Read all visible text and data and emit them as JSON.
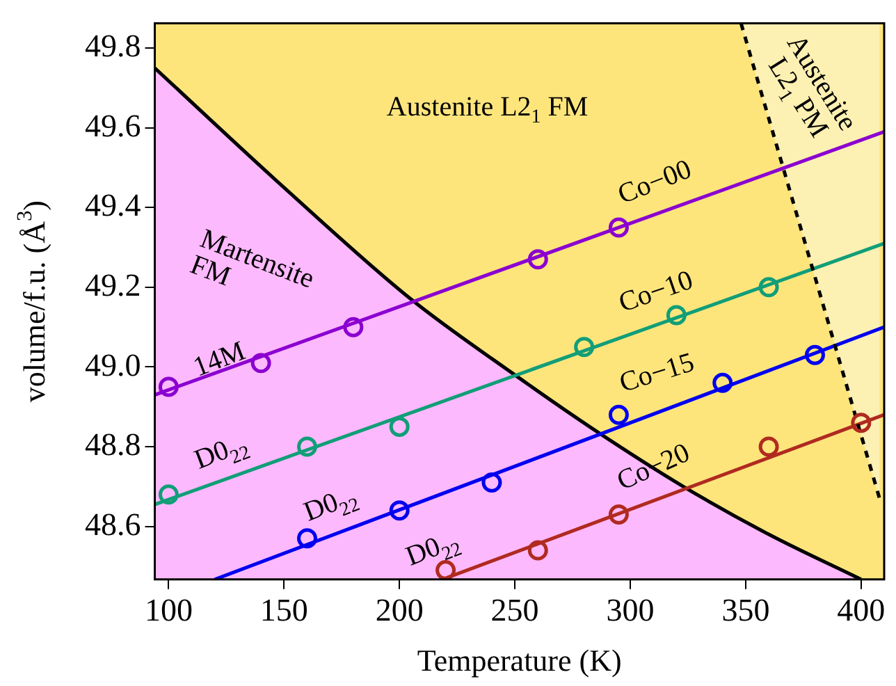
{
  "chart_data": {
    "type": "scatter",
    "xlabel": "Temperature (K)",
    "ylabel": "volume/f.u. (Å$^{3}$)",
    "xlim": [
      94,
      410
    ],
    "ylim": [
      48.467,
      49.862
    ],
    "xticks": [
      100,
      150,
      200,
      250,
      300,
      350,
      400
    ],
    "yticks": [
      48.6,
      48.8,
      {
        "value": 49,
        "label": "49.0"
      },
      49.2,
      49.4,
      49.6,
      49.8
    ],
    "grid": false,
    "legend": false,
    "marker": "circle",
    "series": [
      {
        "type": "area",
        "marker": "none",
        "color": "#fdb9fd",
        "x": [
          94,
          150,
          205,
          250,
          285,
          323,
          360,
          400
        ],
        "values": [
          49.75,
          49.45,
          49.17,
          48.98,
          48.84,
          48.7,
          48.58,
          48.467
        ]
      },
      {
        "type": "line",
        "marker": "none",
        "line_style": "dashed",
        "color": "#000000",
        "x": [
          348,
          408
        ],
        "values": [
          49.862,
          48.67
        ],
        "lower": [
          49.862,
          48.67
        ],
        "upper": [
          49.862,
          49.862
        ]
      },
      {
        "type": "line",
        "marker": "none",
        "color": "#8b00d0",
        "x": [
          94,
          410
        ],
        "values": [
          48.93,
          49.59
        ]
      },
      {
        "type": "line",
        "marker": "none",
        "color": "#119e78",
        "x": [
          94,
          410
        ],
        "values": [
          48.655,
          49.31
        ]
      },
      {
        "type": "line",
        "marker": "none",
        "color": "#0000f0",
        "x": [
          120,
          410
        ],
        "values": [
          48.467,
          49.1
        ]
      },
      {
        "type": "line",
        "marker": "none",
        "color": "#b02a20",
        "x": [
          220,
          410
        ],
        "values": [
          48.47,
          48.88
        ]
      },
      {
        "name": "Co−00",
        "color": "#8b00d0",
        "x": [
          100,
          140,
          180,
          260,
          295
        ],
        "values": [
          48.95,
          49.01,
          49.1,
          49.27,
          49.35
        ]
      },
      {
        "name": "Co−10",
        "color": "#119e78",
        "x": [
          100,
          160,
          200,
          280,
          320,
          360
        ],
        "values": [
          48.68,
          48.8,
          48.85,
          49.05,
          49.13,
          49.2
        ]
      },
      {
        "name": "Co−15",
        "color": "#0000f0",
        "x": [
          160,
          200,
          240,
          295,
          340,
          380
        ],
        "values": [
          48.57,
          48.64,
          48.71,
          48.88,
          48.96,
          49.03
        ]
      },
      {
        "name": "Co−20",
        "color": "#b02a20",
        "x": [
          220,
          260,
          295,
          360,
          400
        ],
        "values": [
          48.49,
          48.54,
          48.63,
          48.8,
          48.86
        ]
      }
    ],
    "annotations": [
      "Austenite L2$_{1}$ FM",
      "Martensite FM",
      "Austenite L2$_{1}$ PM",
      "14M",
      "D0$_{22}$",
      "D0$_{22}$",
      "D0$_{22}$"
    ]
  }
}
